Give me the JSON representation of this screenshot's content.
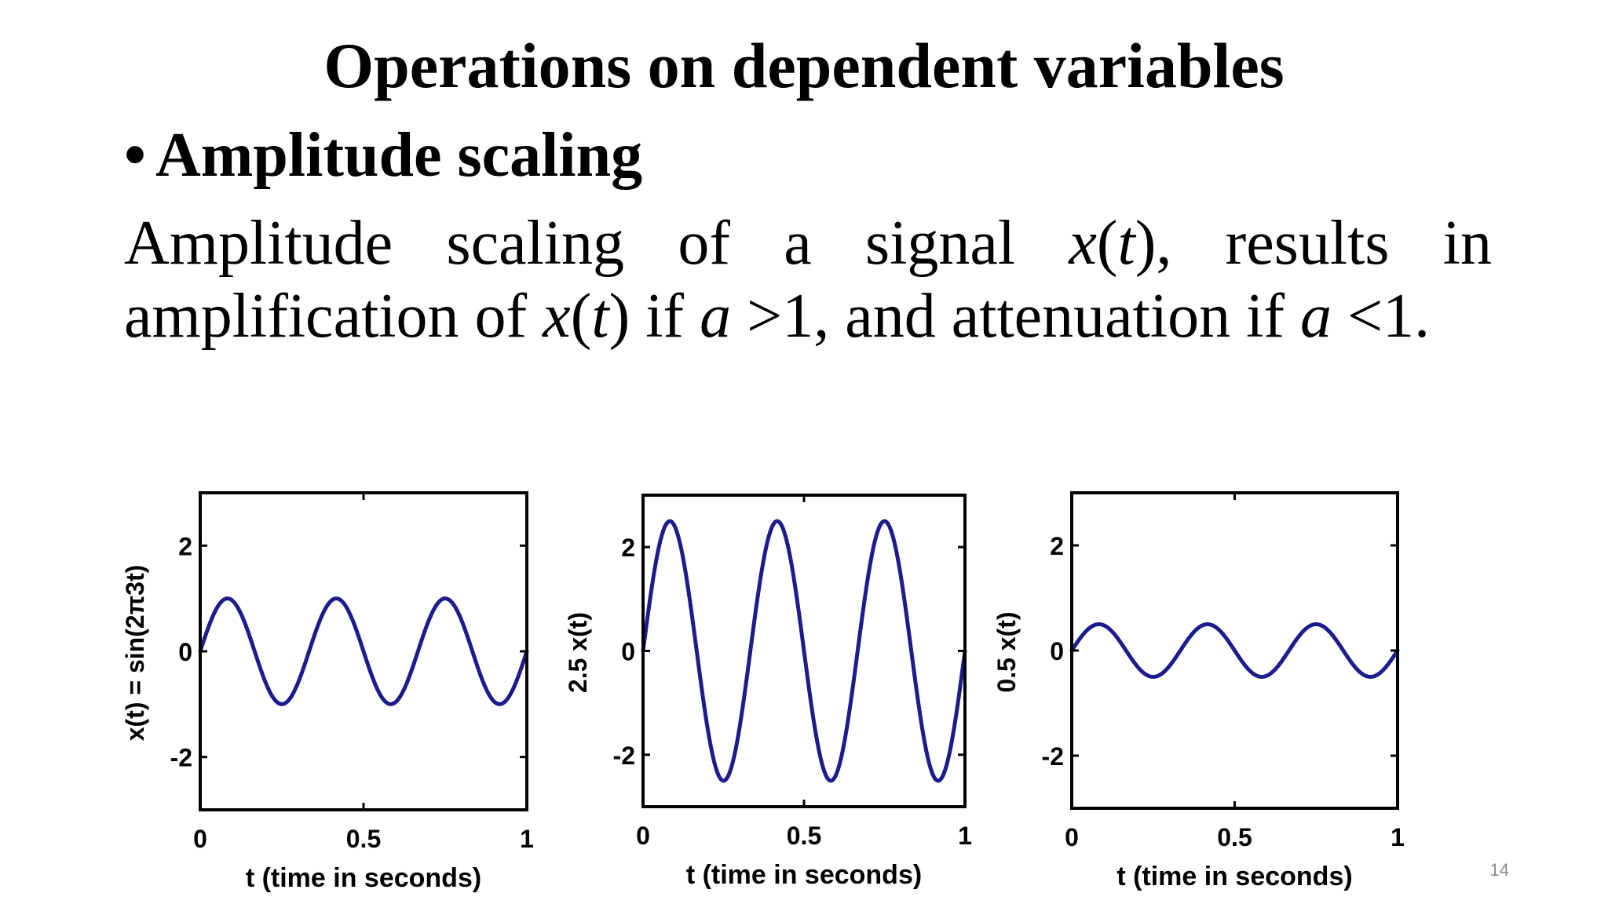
{
  "slide": {
    "title": "Operations on dependent variables",
    "bullet": "Amplitude scaling",
    "page_number": "14"
  },
  "body": {
    "p1": "Amplitude scaling of a signal ",
    "p2": "x",
    "p3": "(",
    "p4": "t",
    "p5": "), results in amplification of ",
    "p6": "x",
    "p7": "(",
    "p8": "t",
    "p9": ") if ",
    "p10": "a",
    "p11": " >1, and attenuation if ",
    "p12": "a",
    "p13": " <1."
  },
  "chart_data": [
    {
      "type": "line",
      "title": "",
      "xlabel": "t (time in seconds)",
      "ylabel": "x(t) = sin(2π3t)",
      "xlim": [
        0,
        1
      ],
      "ylim": [
        -3,
        3
      ],
      "xticks": [
        0,
        0.5,
        1
      ],
      "xtick_labels": [
        "0",
        "0.5",
        "1"
      ],
      "yticks": [
        2,
        0,
        -2
      ],
      "ytick_labels": [
        "2",
        "0",
        "-2"
      ],
      "series": [
        {
          "amplitude": 1,
          "frequency": 3,
          "t_start": 0,
          "t_end": 1,
          "color": "#1c1c8c"
        }
      ],
      "grid": false
    },
    {
      "type": "line",
      "title": "",
      "xlabel": "t (time in seconds)",
      "ylabel": "2.5 x(t)",
      "xlim": [
        0,
        1
      ],
      "ylim": [
        -3,
        3
      ],
      "xticks": [
        0,
        0.5,
        1
      ],
      "xtick_labels": [
        "0",
        "0.5",
        "1"
      ],
      "yticks": [
        2,
        0,
        -2
      ],
      "ytick_labels": [
        "2",
        "0",
        "-2"
      ],
      "series": [
        {
          "amplitude": 2.5,
          "frequency": 3,
          "t_start": 0,
          "t_end": 1,
          "color": "#1c1c8c"
        }
      ],
      "grid": false
    },
    {
      "type": "line",
      "title": "",
      "xlabel": "t (time in seconds)",
      "ylabel": "0.5 x(t)",
      "xlim": [
        0,
        1
      ],
      "ylim": [
        -3,
        3
      ],
      "xticks": [
        0,
        0.5,
        1
      ],
      "xtick_labels": [
        "0",
        "0.5",
        "1"
      ],
      "yticks": [
        2,
        0,
        -2
      ],
      "ytick_labels": [
        "2",
        "0",
        "-2"
      ],
      "series": [
        {
          "amplitude": 0.5,
          "frequency": 3,
          "t_start": 0,
          "t_end": 1,
          "color": "#1c1c8c"
        }
      ],
      "grid": false
    }
  ]
}
